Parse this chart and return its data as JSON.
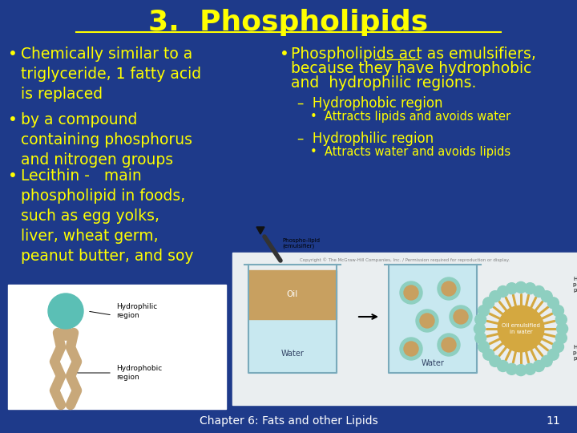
{
  "title": "3.  Phospholipids",
  "bg_color": "#1E3A8A",
  "title_color": "#FFFF00",
  "title_fontsize": 26,
  "bullet_color": "#FFFF00",
  "bullet_fontsize": 13.5,
  "sub_color": "#FFFF00",
  "sub_fontsize": 12,
  "subsub_color": "#FFFF00",
  "subsub_fontsize": 10.5,
  "footer_text": "Chapter 6: Fats and other Lipids",
  "footer_page": "11",
  "footer_color": "#FFFFFF",
  "footer_fontsize": 10,
  "left_bullets": [
    "Chemically similar to a\ntriglyceride, 1 fatty acid\nis replaced",
    "by a compound\ncontaining phosphorus\nand nitrogen groups",
    "Lecithin -   main\nphospholipid in foods,\nsuch as egg yolks,\nliver, wheat germ,\npeanut butter, and soy"
  ],
  "right_main": "Phospholipids act as emulsifiers,\nbecause they have hydrophobic\nand  hydrophilic regions.",
  "right_sub": [
    {
      "label": "Hydrophobic region",
      "detail": "Attracts lipids and avoids water"
    },
    {
      "label": "Hydrophilic region",
      "detail": "Attracts water and avoids lipids"
    }
  ],
  "mol_head_color": "#5BBFB5",
  "mol_tail_color": "#C8A87A",
  "mol_bg": "#FFFFFF",
  "beaker_oil_color": "#C8A060",
  "beaker_water_color": "#C8E8F0",
  "beaker_outline": "#7AAABB",
  "droplet_outer": "#8ECFC0",
  "droplet_inner": "#C8A060",
  "micelle_head": "#8ECFC0",
  "micelle_tail": "#D4A840",
  "micelle_core": "#D4A840",
  "diagram_bg": "#EAEEF0"
}
